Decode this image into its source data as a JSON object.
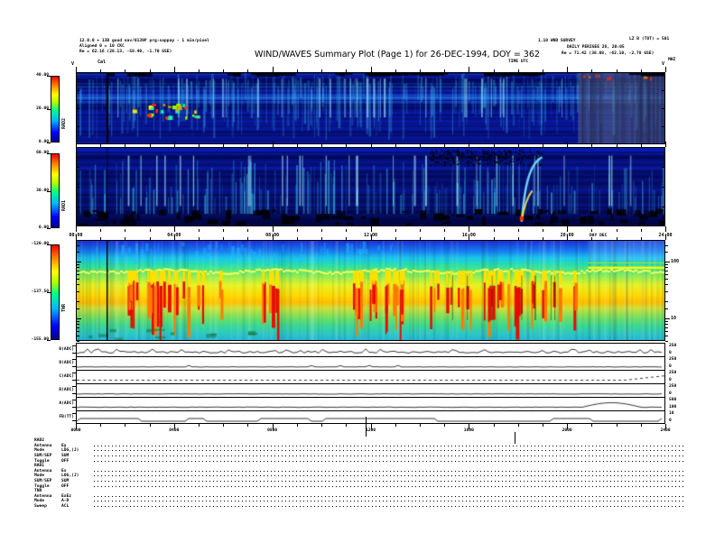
{
  "title": "WIND/WAVES Summary Plot (Page 1) for 26-DEC-1994, DOY = 362",
  "header": {
    "left_lines": [
      "12.0.0 + 13B good nav/0139P prg:soppay - 1 min/pixel",
      "Aligned 0 = 10 CKC",
      "Re =   62.16 (28.13, -58.40, -1.70 GSE)"
    ],
    "right_line1a": "1.10 WND SURVEY",
    "right_line1b": "LZ B (TOT) = 501",
    "right_line2": "DAILY PERIGEE 26, 20:05",
    "right_line3": "Re =   71.42 (38.08, -62.10, -2.78 GSE)",
    "time_axis_label": "TIME UTC",
    "day_note": "DAY DEC",
    "mhz_label": "MHZ",
    "v_marker_left": "V",
    "v_marker_right": "V",
    "cal_marker": "Cal"
  },
  "axes": {
    "time_ticks_colon": [
      "00:00",
      "04:00",
      "08:00",
      "12:00",
      "16:00",
      "20:00",
      "24:00"
    ],
    "time_ticks_plain": [
      "0000",
      "0400",
      "0800",
      "1200",
      "1600",
      "2000",
      "2400"
    ]
  },
  "colorbars": [
    {
      "name": "RAD2",
      "label": "RAD2",
      "ticks": [
        "40.00",
        "20.00",
        "0.00"
      ]
    },
    {
      "name": "RAD1",
      "label": "RAD1",
      "ticks": [
        "60.00",
        "30.00",
        "0.00"
      ]
    },
    {
      "name": "TNR",
      "label": "TNR",
      "ticks": [
        "-120.00",
        "-137.50",
        "-155.00"
      ]
    }
  ],
  "tnr_right_labels": [
    "100",
    "10"
  ],
  "strips": {
    "labels": [
      "B(ADC)",
      "D(ADC)",
      "C(ADC)",
      "B(ADC)",
      "A(ADC)",
      "FB(TT)"
    ],
    "right_ticks": [
      [
        "250",
        "0"
      ],
      [
        "250",
        "0"
      ],
      [
        "250",
        "0"
      ],
      [
        "250",
        "0"
      ],
      [
        "500",
        "100"
      ],
      [
        "10",
        "0"
      ]
    ]
  },
  "legend": {
    "sections": [
      {
        "header": "RAD2",
        "rows": [
          {
            "k": "Antenna",
            "v": "Ey"
          },
          {
            "k": "Mode",
            "v": "LOG,(J)"
          },
          {
            "k": "SUM/SEP",
            "v": "SUM"
          },
          {
            "k": "Toggle",
            "v": "OFF"
          }
        ]
      },
      {
        "header": "RAD1",
        "rows": [
          {
            "k": "Antenna",
            "v": "Ex"
          },
          {
            "k": "Mode",
            "v": "LOG,(J)"
          },
          {
            "k": "SUM/SEP",
            "v": "SUM"
          },
          {
            "k": "Toggle",
            "v": "OFF"
          }
        ]
      },
      {
        "header": "TNR",
        "rows": [
          {
            "k": "Antenna",
            "v": "ExEz"
          },
          {
            "k": "Mode",
            "v": "A-D"
          },
          {
            "k": "Sweep",
            "v": "ACL"
          }
        ]
      }
    ]
  },
  "colors": {
    "panel_base": "#0a1cb0",
    "colormap_bottom": "#000090",
    "colormap_top": "#ff0000",
    "hot_red": "#e60d00",
    "yellow_band": "#ffd900",
    "cyan_streak": "#50dcff"
  },
  "chart_data": [
    {
      "type": "heatmap",
      "name": "RAD2",
      "x": "time 00:00-24:00 UT",
      "y_units": "MHz",
      "colorbar_range": [
        0,
        40
      ],
      "colorbar_ticks": [
        40,
        20,
        0
      ],
      "description": "Radio receiver band 2 spectrogram: blue background with cyan vertical bursts, bright yellow/red spot cluster near 03:30-04:30, gray desaturated column after ~20:30, black calibration line near 01:15"
    },
    {
      "type": "heatmap",
      "name": "RAD1",
      "x": "time 00:00-24:00 UT",
      "colorbar_range": [
        0,
        60
      ],
      "colorbar_ticks": [
        60,
        30,
        0
      ],
      "description": "Radio receiver band 1 spectrogram: blue with dense cyan vertical spikes, black speckle patch 17:30-19:30 top, dark blobs along bottom edge, bright curved rising feature near 21:00-21:30"
    },
    {
      "type": "heatmap",
      "name": "TNR",
      "x": "time 00:00-24:00 UT",
      "y_axis": "frequency kHz, log scale, labeled ticks 100 and 10",
      "colorbar_range": [
        -155,
        -120
      ],
      "colorbar_ticks": [
        -120,
        -137.5,
        -155
      ],
      "description": "Thermal noise receiver spectrogram: yellow-green plasma frequency band across middle with intense red burst clusters ~02:00-06:00, ~11:00-13:30, ~14:30-20:30, continuous yellow line on right after ~21:00, black calibration line near 01:15"
    },
    {
      "type": "line",
      "name": "housekeeping-strips",
      "panels": [
        "B(ADC)",
        "D(ADC)",
        "C(ADC)",
        "B(ADC)",
        "A(ADC)",
        "FB(TT)"
      ],
      "x": "time 0000-2400",
      "description": "Six narrow strip charts of near-flat black telemetry traces with small fluctuations; rises near right edge in panels 3 and 5"
    }
  ]
}
